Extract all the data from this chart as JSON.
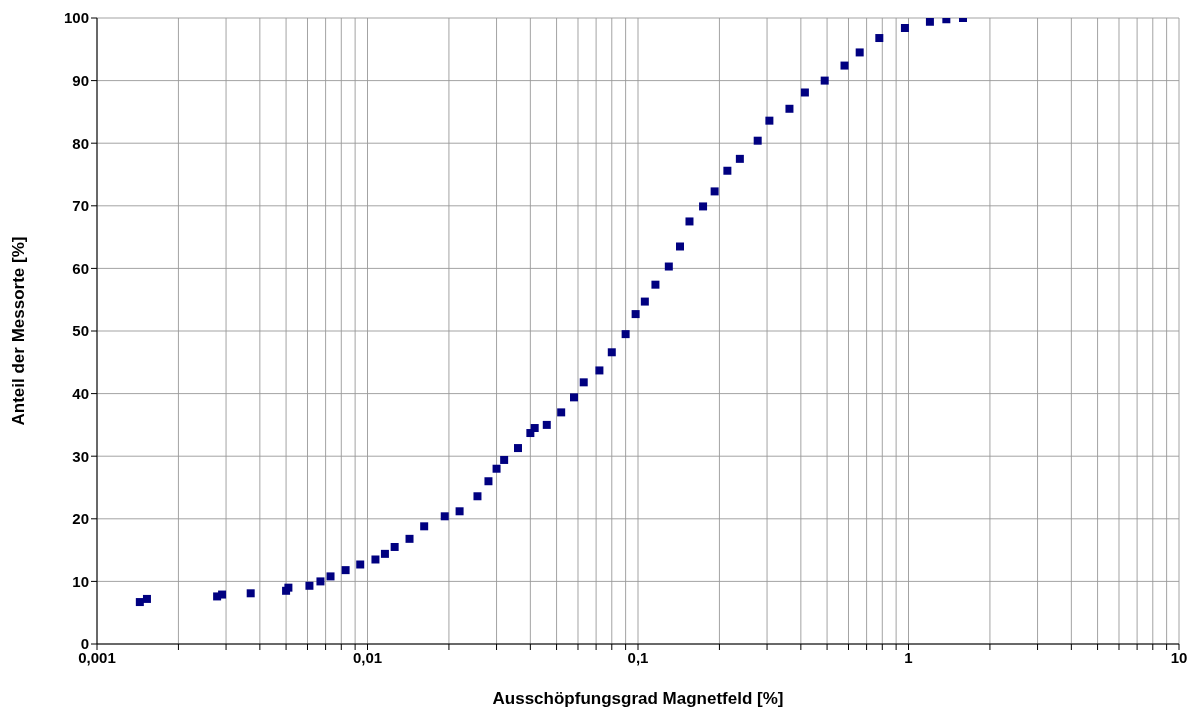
{
  "chart_data": {
    "type": "scatter",
    "xlabel": "Ausschöpfungsgrad Magnetfeld [%]",
    "ylabel": "Anteil der Messorte [%]",
    "log": "x",
    "grid": true,
    "marker": "square",
    "xlim": [
      0.001,
      10
    ],
    "xticks": [
      {
        "value": 0.001,
        "label": "0,001"
      },
      {
        "value": 0.002,
        "label": null
      },
      {
        "value": 0.003,
        "label": null
      },
      {
        "value": 0.004,
        "label": null
      },
      {
        "value": 0.005,
        "label": null
      },
      {
        "value": 0.006,
        "label": null
      },
      {
        "value": 0.007,
        "label": null
      },
      {
        "value": 0.008,
        "label": null
      },
      {
        "value": 0.009,
        "label": null
      },
      {
        "value": 0.01,
        "label": "0,01"
      },
      {
        "value": 0.02,
        "label": null
      },
      {
        "value": 0.03,
        "label": null
      },
      {
        "value": 0.04,
        "label": null
      },
      {
        "value": 0.05,
        "label": null
      },
      {
        "value": 0.06,
        "label": null
      },
      {
        "value": 0.07,
        "label": null
      },
      {
        "value": 0.08,
        "label": null
      },
      {
        "value": 0.09,
        "label": null
      },
      {
        "value": 0.1,
        "label": "0,1"
      },
      {
        "value": 0.2,
        "label": null
      },
      {
        "value": 0.3,
        "label": null
      },
      {
        "value": 0.4,
        "label": null
      },
      {
        "value": 0.5,
        "label": null
      },
      {
        "value": 0.6,
        "label": null
      },
      {
        "value": 0.7,
        "label": null
      },
      {
        "value": 0.8,
        "label": null
      },
      {
        "value": 0.9,
        "label": null
      },
      1,
      {
        "value": 2,
        "label": null
      },
      {
        "value": 3,
        "label": null
      },
      {
        "value": 4,
        "label": null
      },
      {
        "value": 5,
        "label": null
      },
      {
        "value": 6,
        "label": null
      },
      {
        "value": 7,
        "label": null
      },
      {
        "value": 8,
        "label": null
      },
      {
        "value": 9,
        "label": null
      },
      10
    ],
    "ylim": [
      0,
      100
    ],
    "yticks": [
      0,
      10,
      20,
      30,
      40,
      50,
      60,
      70,
      80,
      90,
      100
    ],
    "series": [
      {
        "color": "#000080",
        "x": [
          0.00144,
          0.00153,
          0.00278,
          0.0029,
          0.0037,
          0.005,
          0.0051,
          0.0061,
          0.0067,
          0.0073,
          0.0083,
          0.0094,
          0.0107,
          0.0116,
          0.0126,
          0.0143,
          0.0162,
          0.0193,
          0.0219,
          0.0255,
          0.028,
          0.03,
          0.032,
          0.036,
          0.04,
          0.0415,
          0.046,
          0.052,
          0.058,
          0.063,
          0.072,
          0.08,
          0.09,
          0.098,
          0.106,
          0.116,
          0.13,
          0.143,
          0.155,
          0.174,
          0.192,
          0.214,
          0.238,
          0.277,
          0.306,
          0.363,
          0.414,
          0.49,
          0.58,
          0.66,
          0.78,
          0.97,
          1.2,
          1.38,
          1.59
        ],
        "values": [
          6.7,
          7.2,
          7.6,
          7.9,
          8.1,
          8.5,
          9.0,
          9.3,
          10.0,
          10.8,
          11.8,
          12.7,
          13.5,
          14.4,
          15.5,
          16.8,
          18.8,
          20.4,
          21.2,
          23.6,
          26,
          28,
          29.4,
          31.3,
          33.7,
          34.5,
          35,
          37,
          39.4,
          41.8,
          43.7,
          46.6,
          49.5,
          52.7,
          54.7,
          57.4,
          60.3,
          63.5,
          67.5,
          69.9,
          72.3,
          75.6,
          77.5,
          80.4,
          83.6,
          85.5,
          88.1,
          90,
          92.4,
          94.5,
          96.8,
          98.4,
          99.4,
          99.8,
          100
        ]
      }
    ]
  }
}
